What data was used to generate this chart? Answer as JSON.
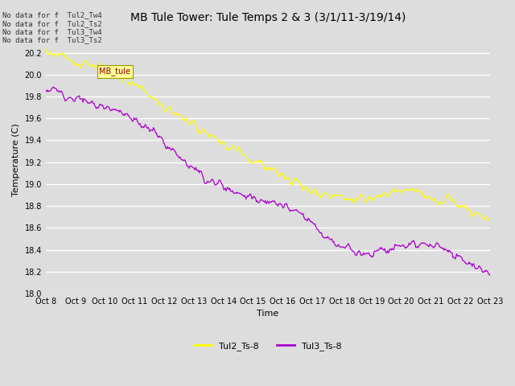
{
  "title": "MB Tule Tower: Tule Temps 2 & 3 (3/1/11-3/19/14)",
  "xlabel": "Time",
  "ylabel": "Temperature (C)",
  "ylim": [
    18.0,
    20.45
  ],
  "xlim": [
    0,
    15
  ],
  "x_tick_labels": [
    "Oct 8",
    "Oct 9",
    "Oct 10",
    "Oct 11",
    "Oct 12",
    "Oct 13",
    "Oct 14",
    "Oct 15",
    "Oct 16",
    "Oct 17",
    "Oct 18",
    "Oct 19",
    "Oct 20",
    "Oct 21",
    "Oct 22",
    "Oct 23"
  ],
  "series1_label": "Tul2_Ts-8",
  "series2_label": "Tul3_Ts-8",
  "series1_color": "#ffff00",
  "series2_color": "#aa00cc",
  "bg_color": "#dddddd",
  "plot_bg_color": "#dddddd",
  "annotation_lines": [
    "No data for f  Tul2_Tw4",
    "No data for f  Tul2_Ts2",
    "No data for f  Tul3_Tw4",
    "No data for f  Tul3_Ts2"
  ],
  "annotation_box_text": "MB_tule",
  "grid_color": "#ffffff",
  "tick_fontsize": 7,
  "label_fontsize": 8,
  "title_fontsize": 10,
  "legend_fontsize": 8
}
